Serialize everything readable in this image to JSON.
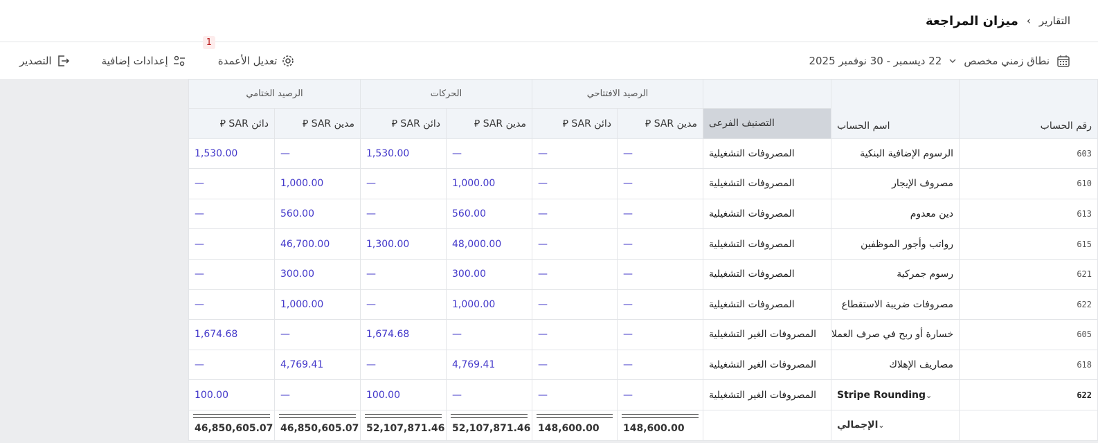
{
  "breadcrumb": {
    "parent": "التقارير",
    "separator": "›",
    "current": "ميزان المراجعة"
  },
  "toolbar": {
    "date_mode": "نطاق زمني مخصص",
    "date_range": "22 ديسمبر - 30 نوفمبر 2025",
    "edit_columns": "تعديل الأعمدة",
    "edit_columns_badge": "1",
    "more_settings": "إعدادات إضافية",
    "export": "التصدير"
  },
  "table": {
    "group_headers": [
      "الرصيد الافتتاحي",
      "الحركات",
      "الرصيد الختامي"
    ],
    "headers": {
      "number": "رقم الحساب",
      "name": "اسم الحساب",
      "category": "التصنيف الفرعى",
      "debit": "مدين SAR ⃁",
      "credit": "دائن SAR ⃁"
    },
    "rows": [
      {
        "number": "603",
        "name": "الرسوم الإضافية البنكية",
        "category": "المصروفات التشغيلية",
        "values": [
          "—",
          "—",
          "—",
          "1,530.00",
          "—",
          "1,530.00"
        ]
      },
      {
        "number": "610",
        "name": "مصروف الإيجار",
        "category": "المصروفات التشغيلية",
        "values": [
          "—",
          "—",
          "1,000.00",
          "—",
          "1,000.00",
          "—"
        ]
      },
      {
        "number": "613",
        "name": "دين معدوم",
        "category": "المصروفات التشغيلية",
        "values": [
          "—",
          "—",
          "560.00",
          "—",
          "560.00",
          "—"
        ]
      },
      {
        "number": "615",
        "name": "رواتب وأجور الموظفين",
        "category": "المصروفات التشغيلية",
        "values": [
          "—",
          "—",
          "48,000.00",
          "1,300.00",
          "46,700.00",
          "—"
        ]
      },
      {
        "number": "621",
        "name": "رسوم جمركية",
        "category": "المصروفات التشغيلية",
        "values": [
          "—",
          "—",
          "300.00",
          "—",
          "300.00",
          "—"
        ]
      },
      {
        "number": "622",
        "name": "مصروفات ضريبة الاستقطاع",
        "category": "المصروفات التشغيلية",
        "values": [
          "—",
          "—",
          "1,000.00",
          "—",
          "1,000.00",
          "—"
        ]
      },
      {
        "number": "605",
        "name": "خسارة أو ربح في صرف العملات",
        "category": "المصروفات الغير التشغيلية",
        "values": [
          "—",
          "—",
          "—",
          "1,674.68",
          "—",
          "1,674.68"
        ]
      },
      {
        "number": "618",
        "name": "مصاريف الإهلاك",
        "category": "المصروفات الغير التشغيلية",
        "values": [
          "—",
          "—",
          "4,769.41",
          "—",
          "4,769.41",
          "—"
        ]
      },
      {
        "number": "622",
        "name": "Stripe Rounding",
        "category": "المصروفات الغير التشغيلية",
        "values": [
          "—",
          "—",
          "—",
          "100.00",
          "—",
          "100.00"
        ],
        "expandable": true
      }
    ],
    "total": {
      "label": "الإجمالي",
      "values": [
        "148,600.00",
        "148,600.00",
        "52,107,871.46",
        "52,107,871.46",
        "46,850,605.07",
        "46,850,605.07"
      ]
    }
  }
}
